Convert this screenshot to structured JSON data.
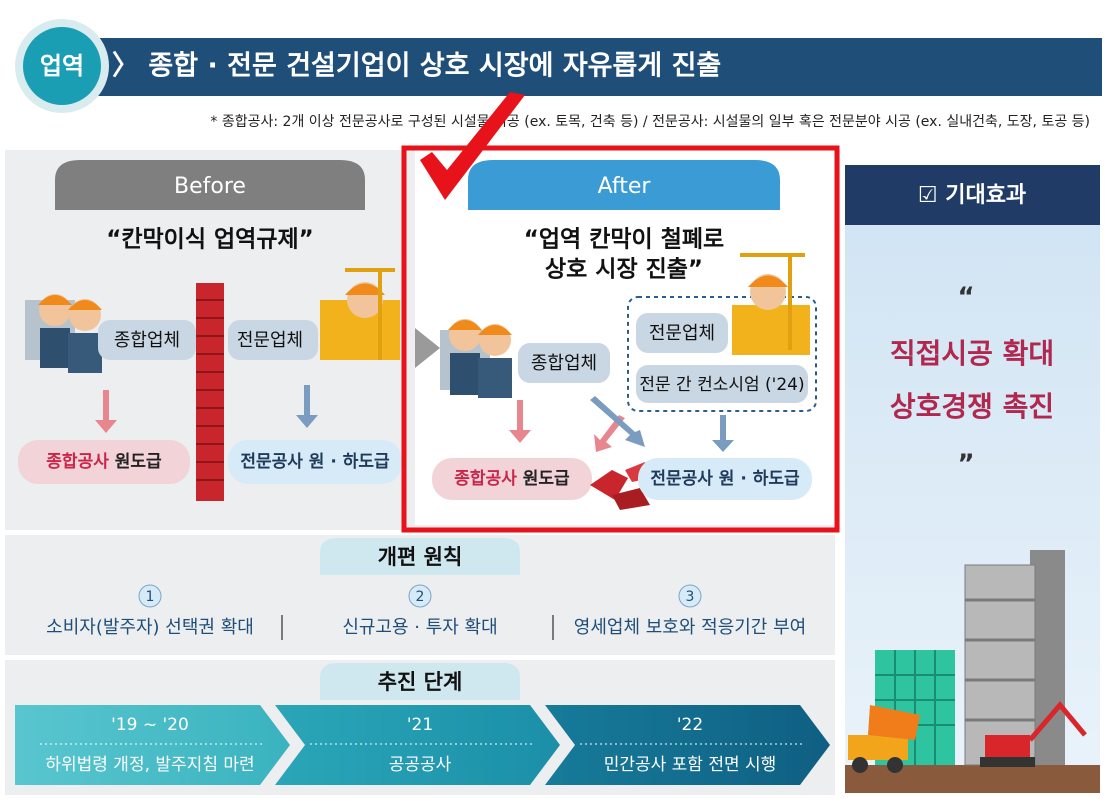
{
  "header": {
    "badge": "업역",
    "title": "〉 종합 · 전문 건설기업이 상호 시장에 자유롭게 진출",
    "note": "* 종합공사: 2개 이상 전문공사로 구성된 시설물 시공 (ex. 토목, 건축 등) / 전문공사: 시설물의 일부 혹은 전문분야 시공 (ex. 실내건축, 도장, 토공 등)"
  },
  "before": {
    "tab": "Before",
    "quote": "“칸막이식 업역규제”",
    "general_company": "종합업체",
    "special_company": "전문업체",
    "general_result": {
      "highlight": "종합공사",
      "rest": "원도급"
    },
    "special_result": "전문공사 원 · 하도급"
  },
  "after": {
    "tab": "After",
    "quote": [
      "“업역 칸막이 철폐로",
      "상호 시장 진출”"
    ],
    "general_company": "종합업체",
    "special_company": "전문업체",
    "consortium": "전문 간 컨소시엄 ('24)",
    "general_result": {
      "highlight": "종합공사",
      "rest": "원도급"
    },
    "special_result": "전문공사 원 · 하도급"
  },
  "effects": {
    "title": "☑ 기대효과",
    "open_quote": "“",
    "items": [
      "직접시공 확대",
      "상호경쟁 촉진"
    ],
    "close_quote": "”"
  },
  "principles": {
    "title": "개편 원칙",
    "items": [
      {
        "number": "1",
        "text": "소비자(발주자) 선택권 확대"
      },
      {
        "number": "2",
        "text": "신규고용 · 투자 확대"
      },
      {
        "number": "3",
        "text": "영세업체 보호와 적응기간 부여"
      }
    ]
  },
  "stages": {
    "title": "추진 단계",
    "items": [
      {
        "period": "'19 ~ '20",
        "text": "하위법령 개정, 발주지침 마련"
      },
      {
        "period": "'21",
        "text": "공공공사"
      },
      {
        "period": "'22",
        "text": "민간공사 포함 전면 시행"
      }
    ]
  }
}
